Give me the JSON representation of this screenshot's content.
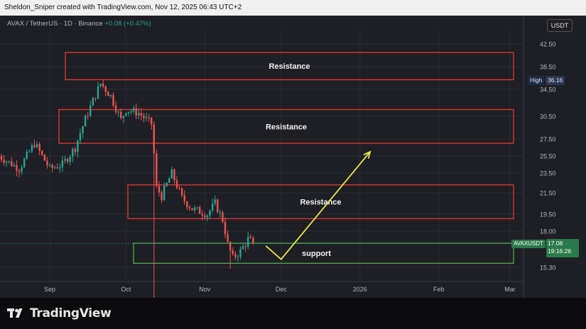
{
  "header": {
    "credit": "Sheldon_Sniper created with TradingView.com, Nov 12, 2025 06:43 UTC+2"
  },
  "symbol_bar": {
    "title": "AVAX / TetherUS · 1D · Binance",
    "change": "+0.08 (+0.47%)"
  },
  "currency_button": "USDT",
  "high_marker": {
    "label": "High",
    "value": "36.16"
  },
  "price_marker": {
    "symbol": "AVAXUSDT",
    "price": "17.08",
    "countdown": "19:16:26"
  },
  "footer": {
    "brand": "TradingView"
  },
  "colors": {
    "up": "#26a69a",
    "down": "#ef5350",
    "resistance": "#e53935",
    "support": "#4caf50",
    "arrow": "#e8e84a"
  },
  "chart_data": {
    "type": "candlestick",
    "y_axis_ticks": [
      "42.50",
      "38.50",
      "34.50",
      "30.50",
      "27.50",
      "25.50",
      "23.50",
      "21.50",
      "19.50",
      "18.00",
      "15.30"
    ],
    "x_axis_ticks": [
      "Sep",
      "Oct",
      "Nov",
      "Dec",
      "2026",
      "Feb",
      "Mar"
    ],
    "zones": [
      {
        "label": "Resistance",
        "kind": "resistance",
        "low": 36.2,
        "high": 41.0
      },
      {
        "label": "Resistance",
        "kind": "resistance",
        "low": 27.0,
        "high": 31.5
      },
      {
        "label": "Resistance",
        "kind": "resistance",
        "low": 19.1,
        "high": 22.3
      },
      {
        "label": "support",
        "kind": "support",
        "low": 15.6,
        "high": 17.1
      }
    ],
    "projection": [
      {
        "date": "2025-11-25",
        "price": 16.9
      },
      {
        "date": "2025-12-01",
        "price": 15.9
      },
      {
        "date": "2026-01-05",
        "price": 26.0
      }
    ],
    "high": 36.16,
    "last": 17.08
  }
}
